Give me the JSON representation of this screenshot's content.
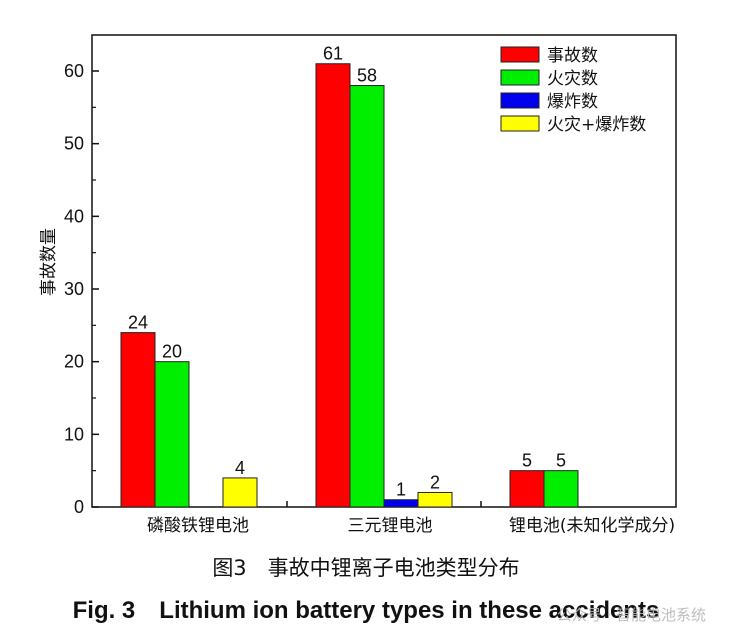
{
  "chart_data": {
    "type": "bar",
    "categories": [
      "磷酸铁锂电池",
      "三元锂电池",
      "锂电池(未知化学成分)"
    ],
    "series": [
      {
        "name": "事故数",
        "color": "#ff0000",
        "values": [
          24,
          61,
          5
        ]
      },
      {
        "name": "火灾数",
        "color": "#00ee00",
        "values": [
          20,
          58,
          5
        ]
      },
      {
        "name": "爆炸数",
        "color": "#0000ee",
        "values": [
          null,
          1,
          null
        ]
      },
      {
        "name": "火灾+爆炸数",
        "color": "#ffff00",
        "values": [
          4,
          2,
          null
        ]
      }
    ],
    "data_labels": [
      [
        "24",
        "20",
        "",
        "4"
      ],
      [
        "61",
        "58",
        "1",
        "2"
      ],
      [
        "5",
        "5",
        "",
        ""
      ]
    ],
    "ylabel": "事故数量",
    "xlabel": "",
    "ylim": [
      0,
      65
    ],
    "yticks": [
      0,
      10,
      20,
      30,
      40,
      50,
      60
    ],
    "legend_position": "top-right",
    "grid": false
  },
  "caption": {
    "chinese": "图3　事故中锂离子电池类型分布",
    "english": "Fig. 3　Lithium ion battery types in these accidents"
  },
  "watermark": "公众号 · 智能电池系统"
}
